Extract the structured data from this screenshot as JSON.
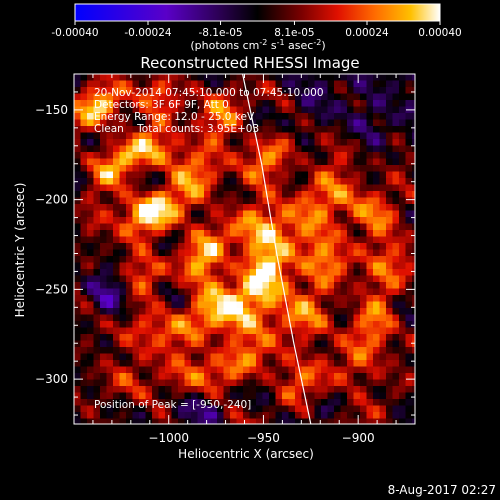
{
  "colorbar": {
    "tick_labels": [
      "-0.00040",
      "-0.00024",
      "-8.1e-05",
      "8.1e-05",
      "0.00024",
      "0.00040"
    ],
    "tick_values": [
      -0.0004,
      -0.00024,
      -8.1e-05,
      8.1e-05,
      0.00024,
      0.0004
    ],
    "range": [
      -0.0004,
      0.0004
    ],
    "units_main": "(photons cm",
    "units_exp1": "-2",
    "units_mid": " s",
    "units_exp2": "-1",
    "units_end": " asec",
    "units_exp3": "-2",
    "units_close": ")",
    "colormap": [
      {
        "stop": 0.0,
        "color": "#0000ff"
      },
      {
        "stop": 0.25,
        "color": "#5a00c8"
      },
      {
        "stop": 0.4,
        "color": "#2a0050"
      },
      {
        "stop": 0.5,
        "color": "#000000"
      },
      {
        "stop": 0.62,
        "color": "#7a0000"
      },
      {
        "stop": 0.72,
        "color": "#e01000"
      },
      {
        "stop": 0.82,
        "color": "#ff6a00"
      },
      {
        "stop": 0.92,
        "color": "#ffc000"
      },
      {
        "stop": 1.0,
        "color": "#ffffff"
      }
    ]
  },
  "plot_title": "Reconstructed RHESSI Image",
  "annotation": {
    "line1": "20-Nov-2014 07:45:10.000 to 07:45:10.000",
    "line2": "Detectors: 3F 6F 9F, Att 0",
    "line3": "Energy Range: 12.0 - 25.0 keV",
    "line4": "Clean    Total counts: 3.95E+03",
    "peak": "Position of Peak = [-950,-240]"
  },
  "footer_date": "8-Aug-2017 02:27",
  "chart_data": {
    "type": "heatmap",
    "title": "Reconstructed RHESSI Image",
    "xlabel": "Heliocentric X (arcsec)",
    "ylabel": "Heliocentric Y (arcsec)",
    "xlim": [
      -1050,
      -870
    ],
    "ylim": [
      -325,
      -130
    ],
    "x_ticks": [
      -1000,
      -950,
      -900
    ],
    "x_tick_labels": [
      "−1000",
      "−950",
      "−900"
    ],
    "y_ticks": [
      -150,
      -200,
      -250,
      -300
    ],
    "y_tick_labels": [
      "−150",
      "−200",
      "−250",
      "−300"
    ],
    "peak_position": [
      -950,
      -240
    ],
    "limb_curve": [
      [
        -961,
        -130
      ],
      [
        -951,
        -180
      ],
      [
        -943,
        -230
      ],
      [
        -934,
        -280
      ],
      [
        -925,
        -325
      ]
    ],
    "sources": [
      {
        "x": -950,
        "y": -240,
        "intensity": 1.0
      },
      {
        "x": -1010,
        "y": -205,
        "intensity": 0.85
      },
      {
        "x": -1035,
        "y": -150,
        "intensity": 0.7
      },
      {
        "x": -975,
        "y": -160,
        "intensity": 0.6
      },
      {
        "x": -990,
        "y": -270,
        "intensity": 0.55
      },
      {
        "x": -955,
        "y": -290,
        "intensity": 0.45
      },
      {
        "x": -890,
        "y": -210,
        "intensity": 0.55
      },
      {
        "x": -885,
        "y": -260,
        "intensity": 0.5
      },
      {
        "x": -905,
        "y": -300,
        "intensity": 0.45
      },
      {
        "x": -1025,
        "y": -300,
        "intensity": 0.4
      },
      {
        "x": -930,
        "y": -195,
        "intensity": 0.5
      }
    ]
  }
}
